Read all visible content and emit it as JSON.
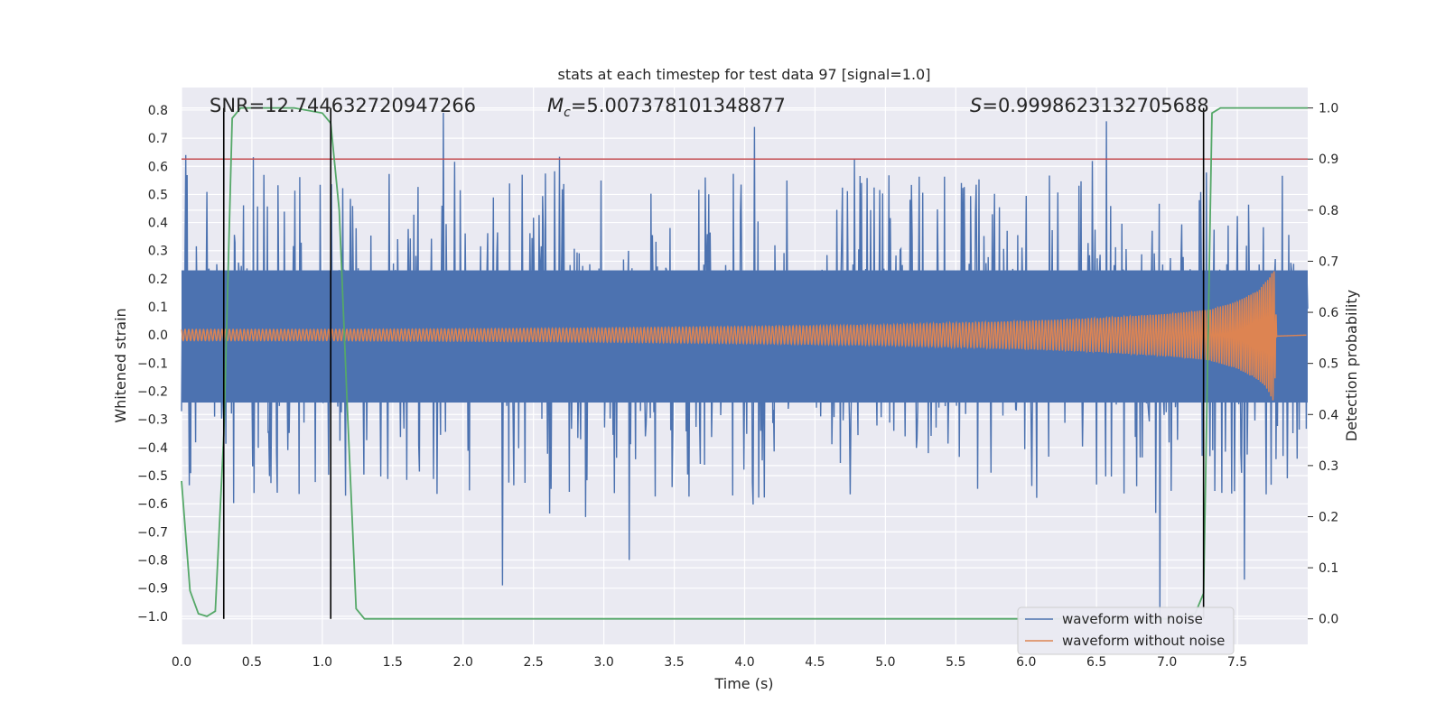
{
  "chart_data": {
    "type": "line",
    "title": "stats at each timestep for test data 97 [signal=1.0]",
    "xlabel": "Time (s)",
    "ylabel": "Whitened strain",
    "ylabel_right": "Detection probability",
    "xlim": [
      0.0,
      8.0
    ],
    "ylim": [
      -1.1,
      0.88
    ],
    "ylim_right": [
      -0.05,
      1.04
    ],
    "x_ticks": [
      "0.0",
      "0.5",
      "1.0",
      "1.5",
      "2.0",
      "2.5",
      "3.0",
      "3.5",
      "4.0",
      "4.5",
      "5.0",
      "5.5",
      "6.0",
      "6.5",
      "7.0",
      "7.5"
    ],
    "y_ticks": [
      "0.8",
      "0.7",
      "0.6",
      "0.5",
      "0.4",
      "0.3",
      "0.2",
      "0.1",
      "0.0",
      "−0.1",
      "−0.2",
      "−0.3",
      "−0.4",
      "−0.5",
      "−0.6",
      "−0.7",
      "−0.8",
      "−0.9",
      "−1.0"
    ],
    "y_right_ticks": [
      "1.0",
      "0.9",
      "0.8",
      "0.7",
      "0.6",
      "0.5",
      "0.4",
      "0.3",
      "0.2",
      "0.1",
      "0.0"
    ],
    "grid": true,
    "legend_position": "lower-right",
    "annotations": {
      "snr": "SNR=12.744632720947266",
      "mc_symbol": "M",
      "mc_sub": "c",
      "mc_value": "=5.007378101348877",
      "s_symbol": "S",
      "s_value": "=0.9998623132705688"
    },
    "threshold": 0.9,
    "vertical_markers": [
      0.3,
      1.06,
      7.26
    ],
    "series": [
      {
        "name": "waveform with noise",
        "color": "#4c72b0",
        "x_range": [
          0.0,
          8.0
        ],
        "band": [
          -0.24,
          0.23
        ],
        "spike_range": [
          -1.0,
          0.79
        ],
        "peaks": [
          [
            1.86,
            0.79
          ],
          [
            4.07,
            0.74
          ],
          [
            6.57,
            0.76
          ],
          [
            6.95,
            -1.0
          ],
          [
            2.28,
            -0.89
          ],
          [
            3.18,
            -0.8
          ],
          [
            7.55,
            -0.87
          ]
        ]
      },
      {
        "name": "waveform without noise",
        "color": "#dd8452",
        "x": [
          0.0,
          1.0,
          2.0,
          3.0,
          4.0,
          5.0,
          6.0,
          6.5,
          7.0,
          7.3,
          7.5,
          7.65,
          7.72,
          7.76,
          7.78,
          8.0
        ],
        "envelope": [
          0.02,
          0.02,
          0.022,
          0.025,
          0.03,
          0.036,
          0.05,
          0.06,
          0.075,
          0.09,
          0.12,
          0.16,
          0.2,
          0.24,
          0.02,
          0.0
        ]
      },
      {
        "name": "detection probability",
        "color": "#55a868",
        "axis": "right",
        "x": [
          0.0,
          0.06,
          0.12,
          0.18,
          0.24,
          0.3,
          0.36,
          0.42,
          0.6,
          0.8,
          1.0,
          1.06,
          1.12,
          1.18,
          1.24,
          1.3,
          2.0,
          3.0,
          4.0,
          5.0,
          6.0,
          7.0,
          7.2,
          7.26,
          7.32,
          7.38,
          7.5,
          8.0
        ],
        "values": [
          0.27,
          0.055,
          0.01,
          0.005,
          0.015,
          0.36,
          0.98,
          1.0,
          1.0,
          1.0,
          0.99,
          0.97,
          0.8,
          0.4,
          0.02,
          0.0,
          0.0,
          0.0,
          0.0,
          0.0,
          0.0,
          0.0,
          0.01,
          0.05,
          0.99,
          1.0,
          1.0,
          1.0
        ]
      }
    ]
  }
}
